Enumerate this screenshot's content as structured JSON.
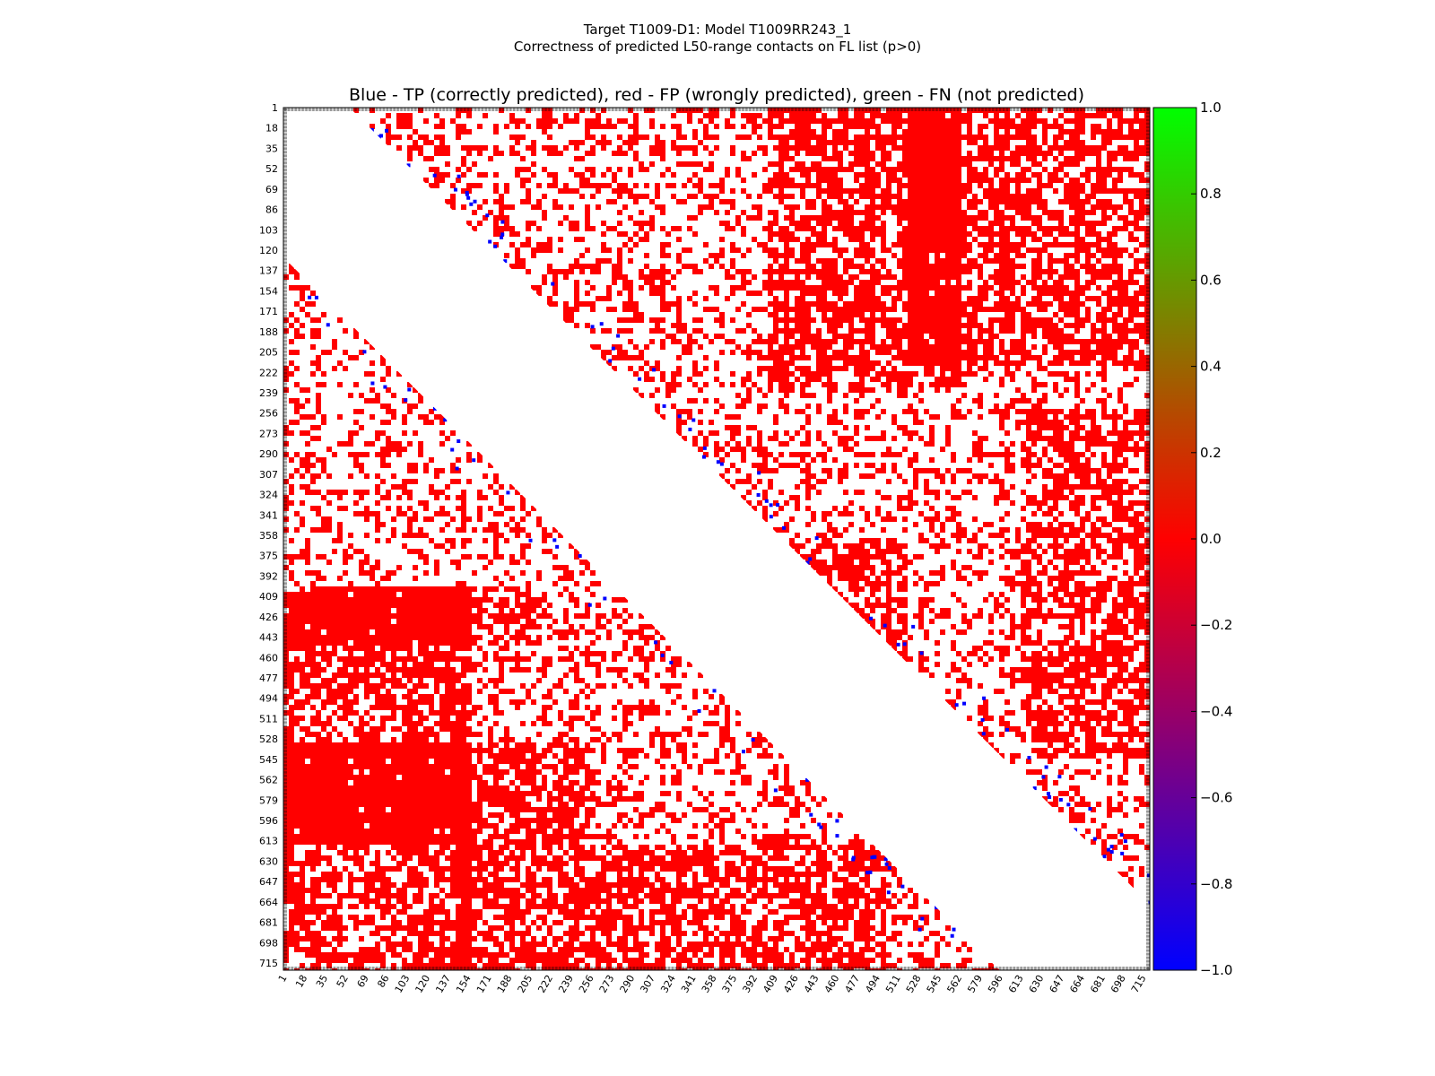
{
  "chart_data": {
    "type": "heatmap",
    "title_line1": "Target T1009-D1: Model T1009RR243_1",
    "title_line2": "Correctness of predicted L50-range contacts on FL list (p>0)",
    "axes_title": "Blue - TP (correctly predicted), red - FP (wrongly predicted), green - FN (not predicted)",
    "n_residues": 720,
    "tick_labels": [
      "1",
      "18",
      "35",
      "52",
      "69",
      "86",
      "103",
      "120",
      "137",
      "154",
      "171",
      "188",
      "205",
      "222",
      "239",
      "256",
      "273",
      "290",
      "307",
      "324",
      "341",
      "358",
      "375",
      "392",
      "409",
      "426",
      "443",
      "460",
      "477",
      "494",
      "511",
      "528",
      "545",
      "562",
      "579",
      "596",
      "613",
      "630",
      "647",
      "664",
      "681",
      "698",
      "715"
    ],
    "colorbar": {
      "min": -1.0,
      "max": 1.0,
      "colors": [
        "#0000ff",
        "#ff0000",
        "#00ff00"
      ],
      "tick_labels": [
        "1.0",
        "0.8",
        "0.6",
        "0.4",
        "0.2",
        "0.0",
        "−0.2",
        "−0.4",
        "−0.6",
        "−0.8",
        "−1.0"
      ]
    },
    "legend": {
      "tp_color": "#0000ff",
      "fp_color": "#ff0000",
      "fn_color": "#00ff00"
    },
    "diagonal_band": {
      "upper_offset_residues": 55,
      "lower_offset_residues": 125
    }
  }
}
